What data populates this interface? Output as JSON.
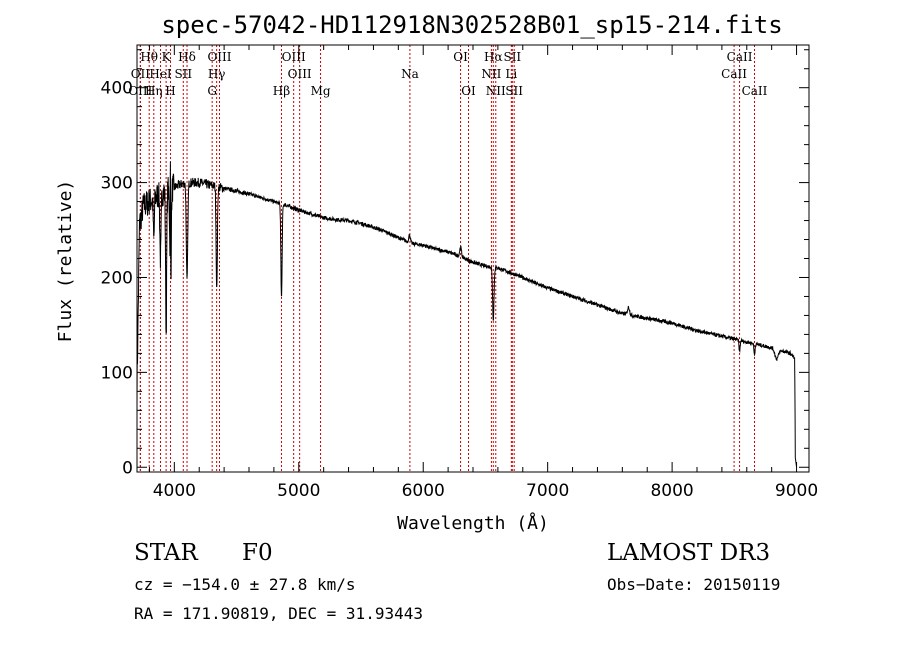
{
  "chart_data": {
    "type": "line",
    "title": "spec-57042-HD112918N302528B01_sp15-214.fits",
    "xlabel": "Wavelength (Å)",
    "ylabel": "Flux (relative)",
    "xlim": [
      3700,
      9100
    ],
    "ylim": [
      -5,
      445
    ],
    "x_ticks": [
      4000,
      5000,
      6000,
      7000,
      8000,
      9000
    ],
    "y_ticks": [
      0,
      100,
      200,
      300,
      400
    ],
    "line_color": "#000000",
    "marker_color": "#cc0000",
    "continuum": [
      [
        3700,
        80
      ],
      [
        3720,
        255
      ],
      [
        3750,
        275
      ],
      [
        3800,
        280
      ],
      [
        3850,
        285
      ],
      [
        3900,
        290
      ],
      [
        3950,
        292
      ],
      [
        4000,
        295
      ],
      [
        4050,
        298
      ],
      [
        4100,
        300
      ],
      [
        4200,
        300
      ],
      [
        4300,
        297
      ],
      [
        4400,
        294
      ],
      [
        4500,
        291
      ],
      [
        4600,
        288
      ],
      [
        4700,
        284
      ],
      [
        4800,
        280
      ],
      [
        4900,
        276
      ],
      [
        5000,
        271
      ],
      [
        5100,
        267
      ],
      [
        5200,
        263
      ],
      [
        5300,
        261
      ],
      [
        5400,
        260
      ],
      [
        5500,
        257
      ],
      [
        5600,
        253
      ],
      [
        5700,
        248
      ],
      [
        5800,
        242
      ],
      [
        5900,
        236
      ],
      [
        6000,
        234
      ],
      [
        6100,
        230
      ],
      [
        6200,
        227
      ],
      [
        6300,
        222
      ],
      [
        6400,
        216
      ],
      [
        6500,
        212
      ],
      [
        6600,
        210
      ],
      [
        6700,
        205
      ],
      [
        6800,
        200
      ],
      [
        6900,
        194
      ],
      [
        7000,
        189
      ],
      [
        7200,
        180
      ],
      [
        7400,
        171
      ],
      [
        7600,
        162
      ],
      [
        7800,
        157
      ],
      [
        8000,
        152
      ],
      [
        8200,
        144
      ],
      [
        8400,
        138
      ],
      [
        8600,
        132
      ],
      [
        8800,
        126
      ],
      [
        8950,
        120
      ],
      [
        8985,
        115
      ],
      [
        8990,
        10
      ],
      [
        9000,
        0
      ]
    ],
    "absorption_features": [
      {
        "wave": 3835,
        "depth": 45,
        "width": 6
      },
      {
        "wave": 3889,
        "depth": 70,
        "width": 7
      },
      {
        "wave": 3934,
        "depth": 150,
        "width": 6
      },
      {
        "wave": 3969,
        "depth": 140,
        "width": 7
      },
      {
        "wave": 4102,
        "depth": 105,
        "width": 8
      },
      {
        "wave": 4341,
        "depth": 110,
        "width": 7
      },
      {
        "wave": 4861,
        "depth": 100,
        "width": 7
      },
      {
        "wave": 5890,
        "depth": 10,
        "width": 10
      },
      {
        "wave": 6563,
        "depth": 55,
        "width": 8
      },
      {
        "wave": 8542,
        "depth": 12,
        "width": 6
      },
      {
        "wave": 8662,
        "depth": 12,
        "width": 6
      },
      {
        "wave": 8840,
        "depth": 10,
        "width": 20
      }
    ],
    "emission_features": [
      {
        "wave": 3968,
        "height": 160,
        "width": 3
      },
      {
        "wave": 5890,
        "height": 18,
        "width": 10
      },
      {
        "wave": 6300,
        "height": 10,
        "width": 10
      },
      {
        "wave": 7650,
        "height": 8,
        "width": 12
      }
    ],
    "line_markers": [
      {
        "label": "Hθ",
        "wave": 3798,
        "row": 1
      },
      {
        "label": "K",
        "wave": 3934,
        "row": 1
      },
      {
        "label": "Hδ",
        "wave": 4102,
        "row": 1
      },
      {
        "label": "OIII",
        "wave": 4363,
        "row": 1
      },
      {
        "label": "OIII",
        "wave": 4959,
        "row": 1
      },
      {
        "label": "OI",
        "wave": 6300,
        "row": 1
      },
      {
        "label": "Hα",
        "wave": 6563,
        "row": 1
      },
      {
        "label": "SII",
        "wave": 6716,
        "row": 1
      },
      {
        "label": "CaII",
        "wave": 8542,
        "row": 1
      },
      {
        "label": "OII",
        "wave": 3727,
        "row": 2
      },
      {
        "label": "HeI",
        "wave": 3889,
        "row": 2
      },
      {
        "label": "SII",
        "wave": 4072,
        "row": 2
      },
      {
        "label": "Hγ",
        "wave": 4340,
        "row": 2
      },
      {
        "label": "OIII",
        "wave": 5007,
        "row": 2
      },
      {
        "label": "Na",
        "wave": 5893,
        "row": 2
      },
      {
        "label": "NII",
        "wave": 6548,
        "row": 2
      },
      {
        "label": "Li",
        "wave": 6708,
        "row": 2
      },
      {
        "label": "CaII",
        "wave": 8498,
        "row": 2
      },
      {
        "label": "OIII",
        "wave": 3727,
        "row": 3
      },
      {
        "label": "Hη",
        "wave": 3835,
        "row": 3
      },
      {
        "label": "H",
        "wave": 3969,
        "row": 3
      },
      {
        "label": "G",
        "wave": 4304,
        "row": 3
      },
      {
        "label": "Hβ",
        "wave": 4861,
        "row": 3
      },
      {
        "label": "Mg",
        "wave": 5175,
        "row": 3
      },
      {
        "label": "OI",
        "wave": 6364,
        "row": 3
      },
      {
        "label": "NII",
        "wave": 6583,
        "row": 3
      },
      {
        "label": "SII",
        "wave": 6731,
        "row": 3
      },
      {
        "label": "CaII",
        "wave": 8662,
        "row": 3
      }
    ]
  },
  "info": {
    "object_class": "STAR",
    "subclass": "F0",
    "survey": "LAMOST DR3",
    "redshift": "cz = −154.0 ± 27.8 km/s",
    "obs_date": "Obs−Date: 20150119",
    "coordinates": "RA = 171.90819, DEC =  31.93443"
  }
}
